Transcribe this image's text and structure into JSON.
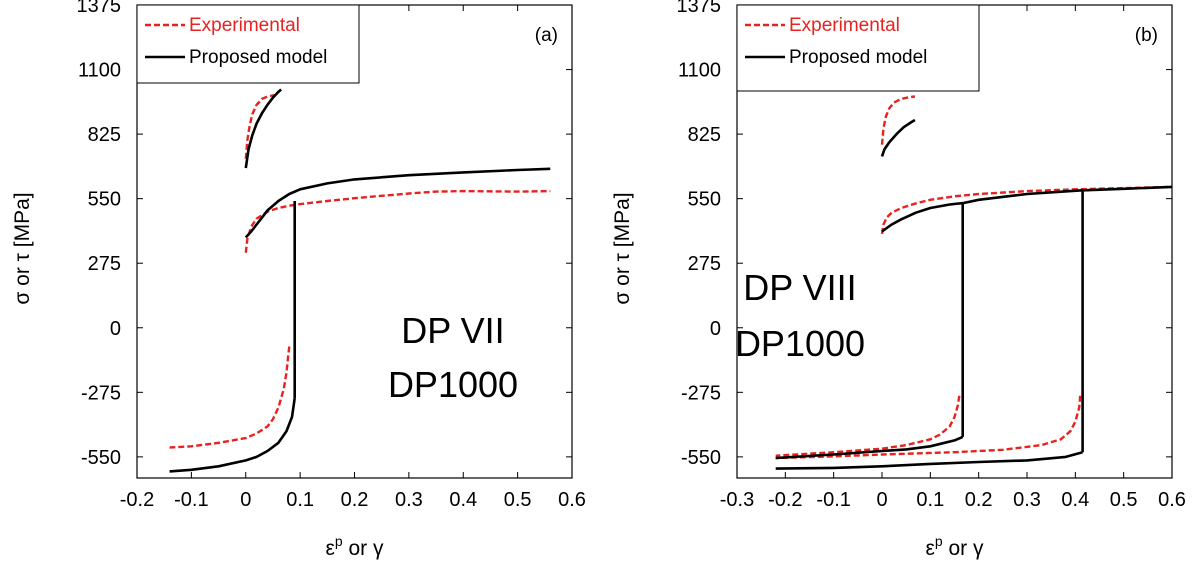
{
  "colors": {
    "experimental": "#e8231f",
    "model": "#000000",
    "axis": "#000000"
  },
  "chart_data": [
    {
      "type": "line",
      "panel_label": "(a)",
      "xlabel_base": "ε",
      "xlabel_sup": "p",
      "xlabel_rest": " or γ",
      "ylabel": "σ or τ [MPa]",
      "xlim": [
        -0.2,
        0.6
      ],
      "ylim": [
        -640,
        1375
      ],
      "xticks": [
        -0.2,
        -0.1,
        0,
        0.1,
        0.2,
        0.3,
        0.4,
        0.5,
        0.6
      ],
      "yticks": [
        -550,
        -275,
        0,
        275,
        550,
        825,
        1100,
        1375
      ],
      "annotation": [
        "DP VII",
        "DP1000"
      ],
      "legend": {
        "position": "top-left",
        "entries": [
          "Experimental",
          "Proposed model"
        ]
      },
      "series": [
        {
          "name": "Experimental",
          "style": "dashed",
          "color": "#e8231f",
          "segments": [
            [
              [
                0,
                720
              ],
              [
                0.003,
                800
              ],
              [
                0.007,
                860
              ],
              [
                0.012,
                910
              ],
              [
                0.02,
                950
              ],
              [
                0.03,
                975
              ],
              [
                0.04,
                985
              ],
              [
                0.05,
                990
              ],
              [
                0.058,
                992
              ]
            ],
            [
              [
                0,
                320
              ],
              [
                0.003,
                380
              ],
              [
                0.01,
                430
              ],
              [
                0.02,
                465
              ],
              [
                0.04,
                495
              ],
              [
                0.06,
                510
              ],
              [
                0.08,
                520
              ],
              [
                0.1,
                527
              ],
              [
                0.15,
                540
              ],
              [
                0.2,
                552
              ],
              [
                0.25,
                562
              ],
              [
                0.3,
                572
              ],
              [
                0.35,
                580
              ],
              [
                0.4,
                582
              ],
              [
                0.5,
                580
              ],
              [
                0.56,
                582
              ]
            ],
            [
              [
                0.08,
                -80
              ],
              [
                0.078,
                -120
              ],
              [
                0.075,
                -190
              ],
              [
                0.07,
                -260
              ],
              [
                0.06,
                -340
              ],
              [
                0.05,
                -390
              ],
              [
                0.04,
                -420
              ],
              [
                0.02,
                -450
              ],
              [
                0,
                -470
              ],
              [
                -0.05,
                -490
              ],
              [
                -0.1,
                -505
              ],
              [
                -0.14,
                -510
              ]
            ]
          ]
        },
        {
          "name": "Proposed model",
          "style": "solid",
          "color": "#000000",
          "segments": [
            [
              [
                0,
                680
              ],
              [
                0.005,
                760
              ],
              [
                0.012,
                820
              ],
              [
                0.02,
                870
              ],
              [
                0.03,
                915
              ],
              [
                0.04,
                950
              ],
              [
                0.05,
                980
              ],
              [
                0.06,
                1005
              ],
              [
                0.065,
                1015
              ]
            ],
            [
              [
                0,
                385
              ],
              [
                0.01,
                410
              ],
              [
                0.02,
                440
              ],
              [
                0.03,
                470
              ],
              [
                0.04,
                500
              ],
              [
                0.06,
                540
              ],
              [
                0.08,
                570
              ],
              [
                0.1,
                590
              ],
              [
                0.15,
                615
              ],
              [
                0.2,
                632
              ],
              [
                0.3,
                650
              ],
              [
                0.4,
                662
              ],
              [
                0.5,
                672
              ],
              [
                0.56,
                677
              ]
            ],
            [
              [
                0.09,
                540
              ],
              [
                0.09,
                -300
              ]
            ],
            [
              [
                0.09,
                -300
              ],
              [
                0.085,
                -380
              ],
              [
                0.075,
                -440
              ],
              [
                0.06,
                -490
              ],
              [
                0.04,
                -525
              ],
              [
                0.02,
                -550
              ],
              [
                0,
                -565
              ],
              [
                -0.05,
                -590
              ],
              [
                -0.1,
                -605
              ],
              [
                -0.14,
                -612
              ]
            ]
          ]
        }
      ]
    },
    {
      "type": "line",
      "panel_label": "(b)",
      "xlabel_base": "ε",
      "xlabel_sup": "p",
      "xlabel_rest": " or γ",
      "ylabel": "σ or τ [MPa]",
      "xlim": [
        -0.3,
        0.6
      ],
      "ylim": [
        -640,
        1375
      ],
      "xticks": [
        -0.3,
        -0.2,
        -0.1,
        0,
        0.1,
        0.2,
        0.3,
        0.4,
        0.5,
        0.6
      ],
      "yticks": [
        -550,
        -275,
        0,
        275,
        550,
        825,
        1100,
        1375
      ],
      "annotation": [
        "DP VIII",
        "DP1000"
      ],
      "legend": {
        "position": "top-left",
        "entries": [
          "Experimental",
          "Proposed model"
        ]
      },
      "series": [
        {
          "name": "Experimental",
          "style": "dashed",
          "color": "#e8231f",
          "segments": [
            [
              [
                0,
                780
              ],
              [
                0.003,
                850
              ],
              [
                0.008,
                900
              ],
              [
                0.015,
                935
              ],
              [
                0.025,
                960
              ],
              [
                0.04,
                975
              ],
              [
                0.055,
                982
              ],
              [
                0.068,
                985
              ]
            ],
            [
              [
                0,
                400
              ],
              [
                0.003,
                440
              ],
              [
                0.01,
                470
              ],
              [
                0.02,
                490
              ],
              [
                0.04,
                510
              ],
              [
                0.07,
                530
              ],
              [
                0.1,
                545
              ],
              [
                0.15,
                560
              ],
              [
                0.2,
                570
              ],
              [
                0.3,
                582
              ],
              [
                0.4,
                590
              ],
              [
                0.5,
                595
              ],
              [
                0.6,
                600
              ]
            ],
            [
              [
                0.16,
                -290
              ],
              [
                0.157,
                -330
              ],
              [
                0.15,
                -380
              ],
              [
                0.14,
                -420
              ],
              [
                0.12,
                -455
              ],
              [
                0.1,
                -475
              ],
              [
                0.05,
                -500
              ],
              [
                0,
                -515
              ],
              [
                -0.1,
                -530
              ],
              [
                -0.22,
                -545
              ]
            ],
            [
              [
                0.41,
                -290
              ],
              [
                0.408,
                -340
              ],
              [
                0.4,
                -400
              ],
              [
                0.39,
                -440
              ],
              [
                0.37,
                -475
              ],
              [
                0.33,
                -500
              ],
              [
                0.25,
                -520
              ],
              [
                0.15,
                -530
              ],
              [
                0,
                -540
              ],
              [
                -0.1,
                -548
              ],
              [
                -0.22,
                -555
              ]
            ]
          ]
        },
        {
          "name": "Proposed model",
          "style": "solid",
          "color": "#000000",
          "segments": [
            [
              [
                0,
                730
              ],
              [
                0.005,
                760
              ],
              [
                0.015,
                790
              ],
              [
                0.03,
                825
              ],
              [
                0.045,
                855
              ],
              [
                0.06,
                875
              ],
              [
                0.068,
                885
              ]
            ],
            [
              [
                0,
                410
              ],
              [
                0.01,
                425
              ],
              [
                0.02,
                440
              ],
              [
                0.04,
                462
              ],
              [
                0.07,
                490
              ],
              [
                0.1,
                510
              ],
              [
                0.14,
                525
              ],
              [
                0.17,
                532
              ],
              [
                0.2,
                545
              ],
              [
                0.3,
                570
              ],
              [
                0.41,
                585
              ],
              [
                0.5,
                592
              ],
              [
                0.6,
                600
              ]
            ],
            [
              [
                0.167,
                532
              ],
              [
                0.167,
                -465
              ]
            ],
            [
              [
                0.167,
                -465
              ],
              [
                0.15,
                -480
              ],
              [
                0.1,
                -505
              ],
              [
                0.05,
                -518
              ],
              [
                0,
                -525
              ],
              [
                -0.1,
                -540
              ],
              [
                -0.22,
                -555
              ]
            ],
            [
              [
                0.415,
                585
              ],
              [
                0.415,
                -530
              ]
            ],
            [
              [
                0.415,
                -530
              ],
              [
                0.38,
                -550
              ],
              [
                0.3,
                -565
              ],
              [
                0.2,
                -572
              ],
              [
                0.1,
                -580
              ],
              [
                0,
                -590
              ],
              [
                -0.1,
                -597
              ],
              [
                -0.22,
                -600
              ]
            ]
          ]
        }
      ]
    }
  ]
}
